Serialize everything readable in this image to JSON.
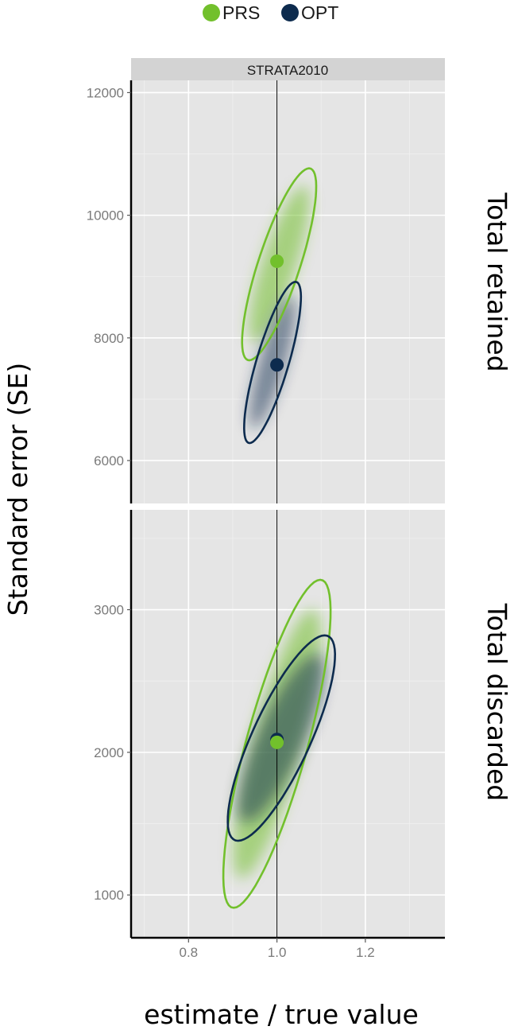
{
  "chart_data": {
    "type": "scatter",
    "legend": {
      "placement": "top",
      "entries": [
        {
          "name": "PRS",
          "color": "#72c02c"
        },
        {
          "name": "OPT",
          "color": "#0d2b4e"
        }
      ]
    },
    "facet_strip": "STRATA2010",
    "xlabel": "estimate / true value",
    "ylabel": "Standard error (SE)",
    "x_ticks": [
      "0.8",
      "1.0",
      "1.2"
    ],
    "xlim": [
      0.67,
      1.38
    ],
    "reference_line_x": 1.0,
    "grid": true,
    "panels": [
      {
        "label": "Total retained",
        "ylim": [
          5300,
          12200
        ],
        "y_ticks": [
          "6000",
          "8000",
          "10000",
          "12000"
        ],
        "series": [
          {
            "name": "PRS",
            "color": "#72c02c",
            "mean": {
              "x": 1.0,
              "y": 9250
            },
            "ellipse": {
              "center": [
                1.005,
                9200
              ],
              "x_extent": [
                0.875,
                1.11
              ],
              "y_extent": [
                7650,
                10780
              ]
            }
          },
          {
            "name": "OPT",
            "color": "#0d2b4e",
            "mean": {
              "x": 1.0,
              "y": 7560
            },
            "ellipse": {
              "center": [
                0.99,
                7600
              ],
              "x_extent": [
                0.905,
                1.085
              ],
              "y_extent": [
                6300,
                8930
              ]
            }
          }
        ]
      },
      {
        "label": "Total discarded",
        "ylim": [
          700,
          3700
        ],
        "y_ticks": [
          "1000",
          "2000",
          "3000"
        ],
        "series": [
          {
            "name": "PRS",
            "color": "#72c02c",
            "mean": {
              "x": 1.0,
              "y": 2070
            },
            "ellipse": {
              "center": [
                1.0,
                2060
              ],
              "x_extent": [
                0.83,
                1.17
              ],
              "y_extent": [
                910,
                3210
              ]
            }
          },
          {
            "name": "OPT",
            "color": "#0d2b4e",
            "mean": {
              "x": 1.0,
              "y": 2090
            },
            "ellipse": {
              "center": [
                1.01,
                2100
              ],
              "x_extent": [
                0.84,
                1.18
              ],
              "y_extent": [
                1380,
                2820
              ]
            }
          }
        ]
      }
    ]
  }
}
